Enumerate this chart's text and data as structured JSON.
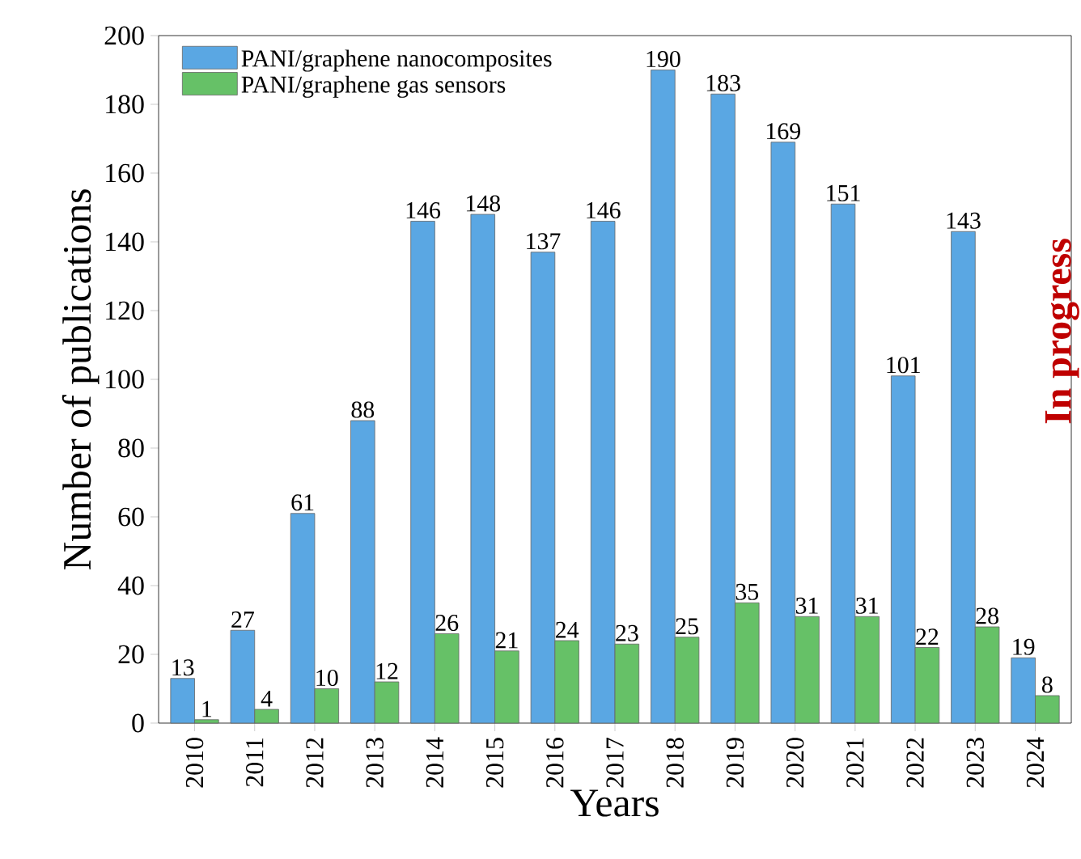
{
  "chart_data": {
    "type": "bar",
    "xlabel": "Years",
    "ylabel": "Number of publications",
    "categories": [
      "2010",
      "2011",
      "2012",
      "2013",
      "2014",
      "2015",
      "2016",
      "2017",
      "2018",
      "2019",
      "2020",
      "2021",
      "2022",
      "2023",
      "2024"
    ],
    "series": [
      {
        "name": "PANI/graphene nanocomposites",
        "color": "#5aa7e3",
        "values": [
          13,
          27,
          61,
          88,
          146,
          148,
          137,
          146,
          190,
          183,
          169,
          151,
          101,
          143,
          19
        ]
      },
      {
        "name": "PANI/graphene gas sensors",
        "color": "#66c167",
        "values": [
          1,
          4,
          10,
          12,
          26,
          21,
          24,
          23,
          25,
          35,
          31,
          31,
          22,
          28,
          8
        ]
      }
    ],
    "ylim": [
      0,
      200
    ],
    "yticks": [
      0,
      20,
      40,
      60,
      80,
      100,
      120,
      140,
      160,
      180,
      200
    ],
    "data_labels": true,
    "legend": "top left",
    "grid": false,
    "annotations": [
      "In progress"
    ]
  }
}
